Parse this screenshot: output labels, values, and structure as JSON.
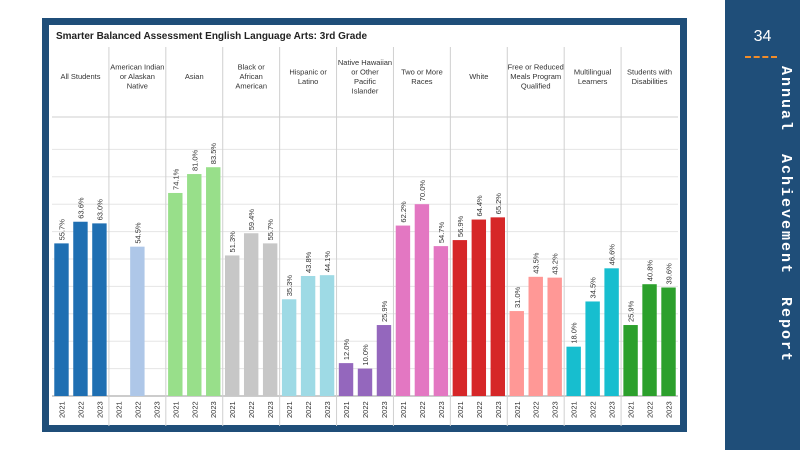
{
  "page": {
    "number": "34",
    "side_title": "Annual  Achievement  Report"
  },
  "chart_data": {
    "type": "bar",
    "title": "Smarter Balanced Assessment English Language Arts: 3rd Grade",
    "ylim": [
      0,
      100
    ],
    "grid": true,
    "groups": [
      {
        "name": "All Students",
        "color": "#1f6fb2",
        "years": [
          "2021",
          "2022",
          "2023"
        ],
        "values": [
          55.7,
          63.6,
          63.0
        ],
        "labels": [
          "55.7%",
          "63.6%",
          "63.0%"
        ]
      },
      {
        "name": "American Indian or Alaskan Native",
        "color": "#aec7e8",
        "years": [
          "2021",
          "2022",
          "2023"
        ],
        "values": [
          null,
          54.5,
          null
        ],
        "labels": [
          "",
          "54.5%",
          ""
        ]
      },
      {
        "name": "Asian",
        "color": "#98df8a",
        "years": [
          "2021",
          "2022",
          "2023"
        ],
        "values": [
          74.1,
          81.0,
          83.5
        ],
        "labels": [
          "74.1%",
          "81.0%",
          "83.5%"
        ]
      },
      {
        "name": "Black or African American",
        "color": "#c7c7c7",
        "years": [
          "2021",
          "2022",
          "2023"
        ],
        "values": [
          51.3,
          59.4,
          55.7
        ],
        "labels": [
          "51.3%",
          "59.4%",
          "55.7%"
        ]
      },
      {
        "name": "Hispanic or Latino",
        "color": "#9edae5",
        "years": [
          "2021",
          "2022",
          "2023"
        ],
        "values": [
          35.3,
          43.8,
          44.1
        ],
        "labels": [
          "35.3%",
          "43.8%",
          "44.1%"
        ]
      },
      {
        "name": "Native Hawaiian or Other Pacific Islander",
        "color": "#9467bd",
        "years": [
          "2021",
          "2022",
          "2023"
        ],
        "values": [
          12.0,
          10.0,
          25.9
        ],
        "labels": [
          "12.0%",
          "10.0%",
          "25.9%"
        ]
      },
      {
        "name": "Two or More Races",
        "color": "#e377c2",
        "years": [
          "2021",
          "2022",
          "2023"
        ],
        "values": [
          62.2,
          70.0,
          54.7
        ],
        "labels": [
          "62.2%",
          "70.0%",
          "54.7%"
        ]
      },
      {
        "name": "White",
        "color": "#d62728",
        "years": [
          "2021",
          "2022",
          "2023"
        ],
        "values": [
          56.9,
          64.4,
          65.2
        ],
        "labels": [
          "56.9%",
          "64.4%",
          "65.2%"
        ]
      },
      {
        "name": "Free or Reduced Meals Program Qualified",
        "color": "#ff9896",
        "years": [
          "2021",
          "2022",
          "2023"
        ],
        "values": [
          31.0,
          43.5,
          43.2
        ],
        "labels": [
          "31.0%",
          "43.5%",
          "43.2%"
        ]
      },
      {
        "name": "Multilingual Learners",
        "color": "#17becf",
        "years": [
          "2021",
          "2022",
          "2023"
        ],
        "values": [
          18.0,
          34.5,
          46.6
        ],
        "labels": [
          "18.0%",
          "34.5%",
          "46.6%"
        ]
      },
      {
        "name": "Students with Disabilities",
        "color": "#2ca02c",
        "years": [
          "2021",
          "2022",
          "2023"
        ],
        "values": [
          25.9,
          40.8,
          39.6
        ],
        "labels": [
          "25.9%",
          "40.8%",
          "39.6%"
        ]
      }
    ]
  }
}
